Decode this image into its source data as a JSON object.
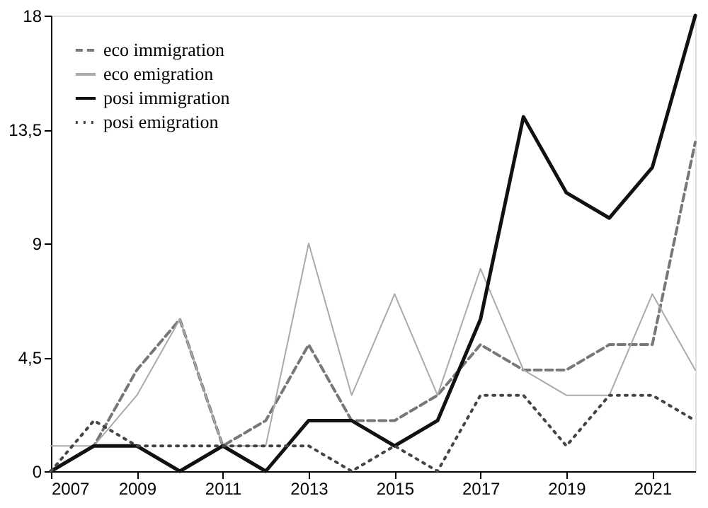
{
  "chart_data": {
    "type": "line",
    "x": [
      2007,
      2008,
      2009,
      2010,
      2011,
      2012,
      2013,
      2014,
      2015,
      2016,
      2017,
      2018,
      2019,
      2020,
      2021,
      2022
    ],
    "series": [
      {
        "name": "eco immigration",
        "color": "#777777",
        "line_style": "dashed",
        "values": [
          0,
          1,
          4,
          6,
          1,
          2,
          5,
          2,
          2,
          3,
          5,
          4,
          4,
          5,
          5,
          13
        ]
      },
      {
        "name": "eco emigration",
        "color": "#aaaaaa",
        "line_style": "solid",
        "values": [
          1,
          1,
          3,
          6,
          1,
          1,
          9,
          3,
          7,
          3,
          8,
          4,
          3,
          3,
          7,
          4
        ]
      },
      {
        "name": "posi immigration",
        "color": "#111111",
        "line_style": "solid",
        "values": [
          0,
          1,
          1,
          0,
          1,
          0,
          2,
          2,
          1,
          2,
          6,
          14,
          11,
          10,
          12,
          18
        ]
      },
      {
        "name": "posi emigration",
        "color": "#444444",
        "line_style": "dotted",
        "values": [
          0,
          2,
          1,
          1,
          1,
          1,
          1,
          0,
          1,
          0,
          3,
          3,
          1,
          3,
          3,
          2
        ]
      }
    ],
    "xlim": [
      2007,
      2022
    ],
    "xticks": [
      2007,
      2009,
      2011,
      2013,
      2015,
      2017,
      2019,
      2021
    ],
    "ylim": [
      0,
      18
    ],
    "yticks": [
      0,
      {
        "value": 4.5,
        "label": "4,5"
      },
      9,
      {
        "value": 13.5,
        "label": "13,5"
      },
      18
    ],
    "legend": "top left",
    "grid": false
  }
}
